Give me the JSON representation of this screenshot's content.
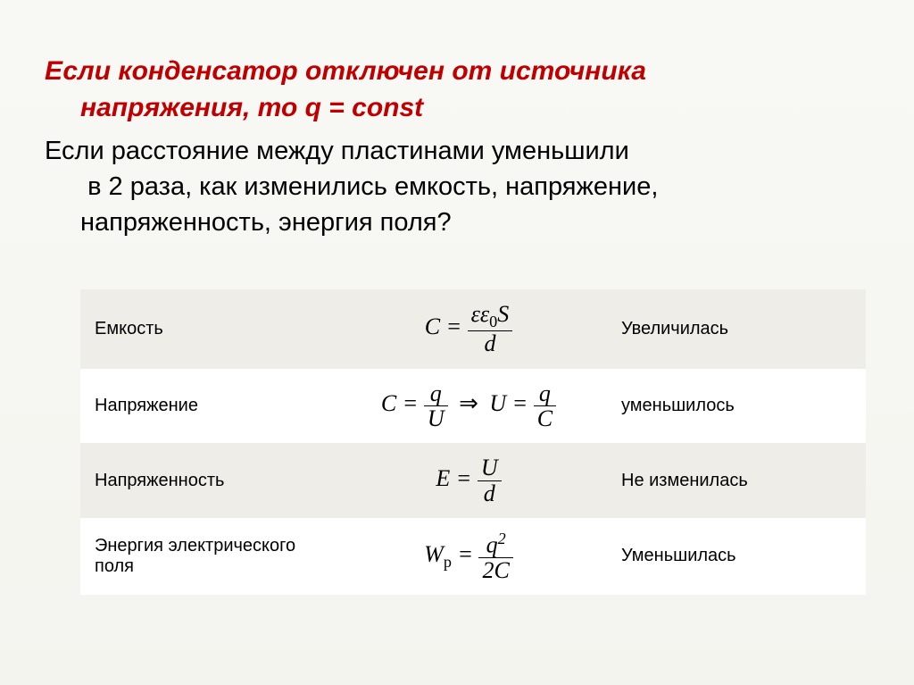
{
  "slide": {
    "title_line1": "Если конденсатор отключен от источника",
    "title_line2": "напряжения, то q  = const",
    "question_line1": "Если расстояние между пластинами уменьшили",
    "question_line2": "в 2 раза, как изменились емкость, напряжение,",
    "question_line3": "напряженность, энергия поля?"
  },
  "table": {
    "rows": [
      {
        "label": "Емкость",
        "formula": {
          "lhs": "C",
          "num": "εε₀S",
          "den": "d"
        },
        "result": "Увеличилась"
      },
      {
        "label": "Напряжение",
        "formula": {
          "part1_lhs": "C",
          "part1_num": "q",
          "part1_den": "U",
          "part2_lhs": "U",
          "part2_num": "q",
          "part2_den": "C"
        },
        "result": "уменьшилось"
      },
      {
        "label": "Напряженность",
        "formula": {
          "lhs": "E",
          "num": "U",
          "den": "d"
        },
        "result": "Не изменилась"
      },
      {
        "label": "Энергия электрического поля",
        "formula": {
          "lhs": "Wₚ",
          "num": "q²",
          "den": "2C"
        },
        "result": "Уменьшилась"
      }
    ]
  },
  "styles": {
    "title_color": "#c00000",
    "background_top": "#f8f8f5",
    "background_bottom": "#f4f4ef",
    "row_odd_bg": "#eeede7",
    "row_even_bg": "#ffffff"
  }
}
